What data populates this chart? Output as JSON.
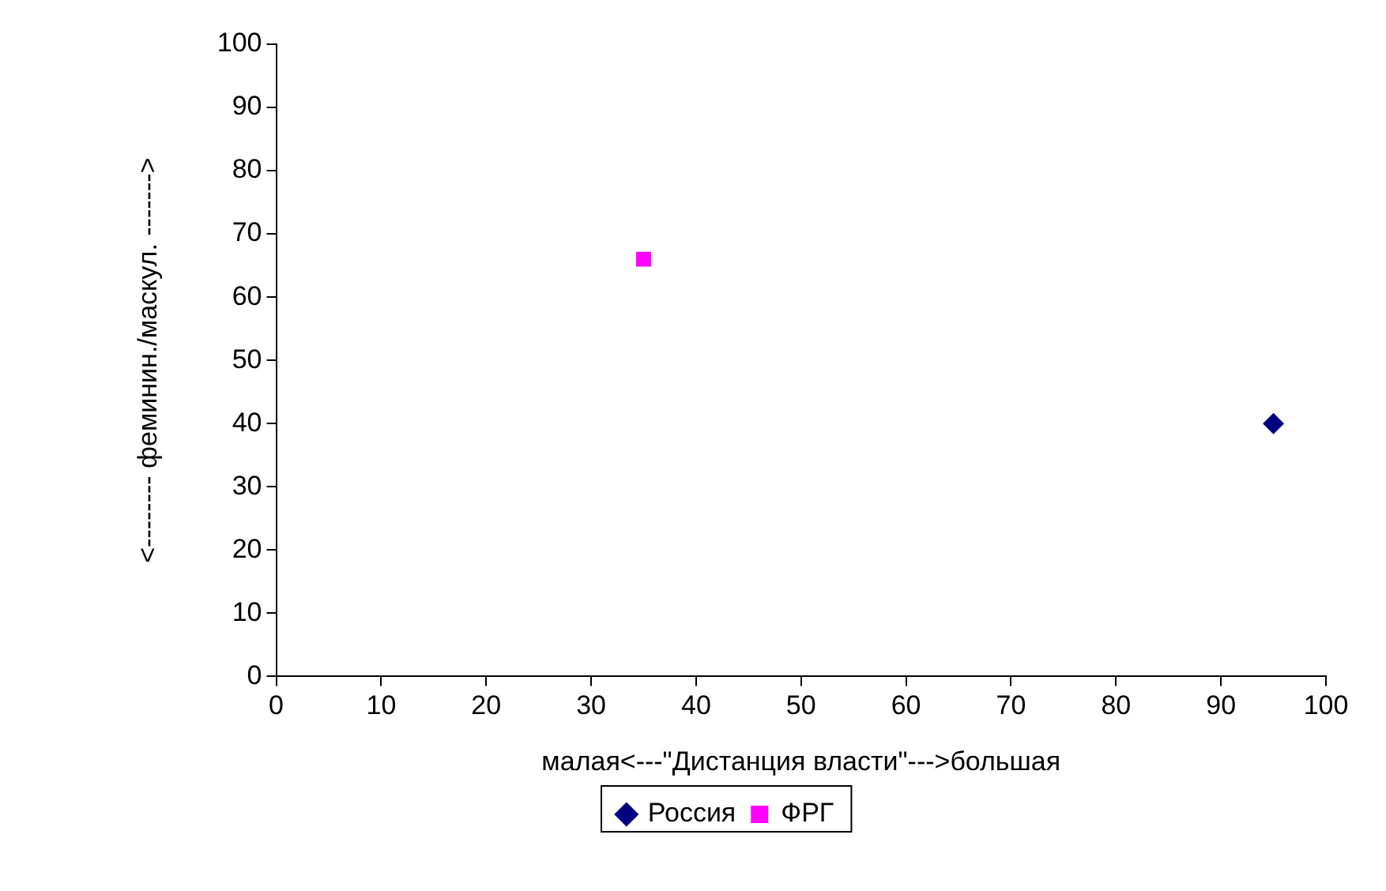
{
  "chart_data": {
    "type": "scatter",
    "xlabel": "малая<---\"Дистанция власти\"--->большая",
    "ylabel": "<-------- феминин./маскул. ------->",
    "xlim": [
      0,
      100
    ],
    "xticks": [
      0,
      10,
      20,
      30,
      40,
      50,
      60,
      70,
      80,
      90,
      100
    ],
    "ylim": [
      0,
      100
    ],
    "yticks": [
      0,
      10,
      20,
      30,
      40,
      50,
      60,
      70,
      80,
      90,
      100
    ],
    "grid": false,
    "legend": "bottom",
    "series": [
      {
        "name": "Россия",
        "color": "#000080",
        "marker": "diamond",
        "x": [
          95
        ],
        "values": [
          40
        ]
      },
      {
        "name": "ФРГ",
        "color": "#ff00ff",
        "marker": "square",
        "x": [
          35
        ],
        "values": [
          66
        ]
      }
    ]
  }
}
